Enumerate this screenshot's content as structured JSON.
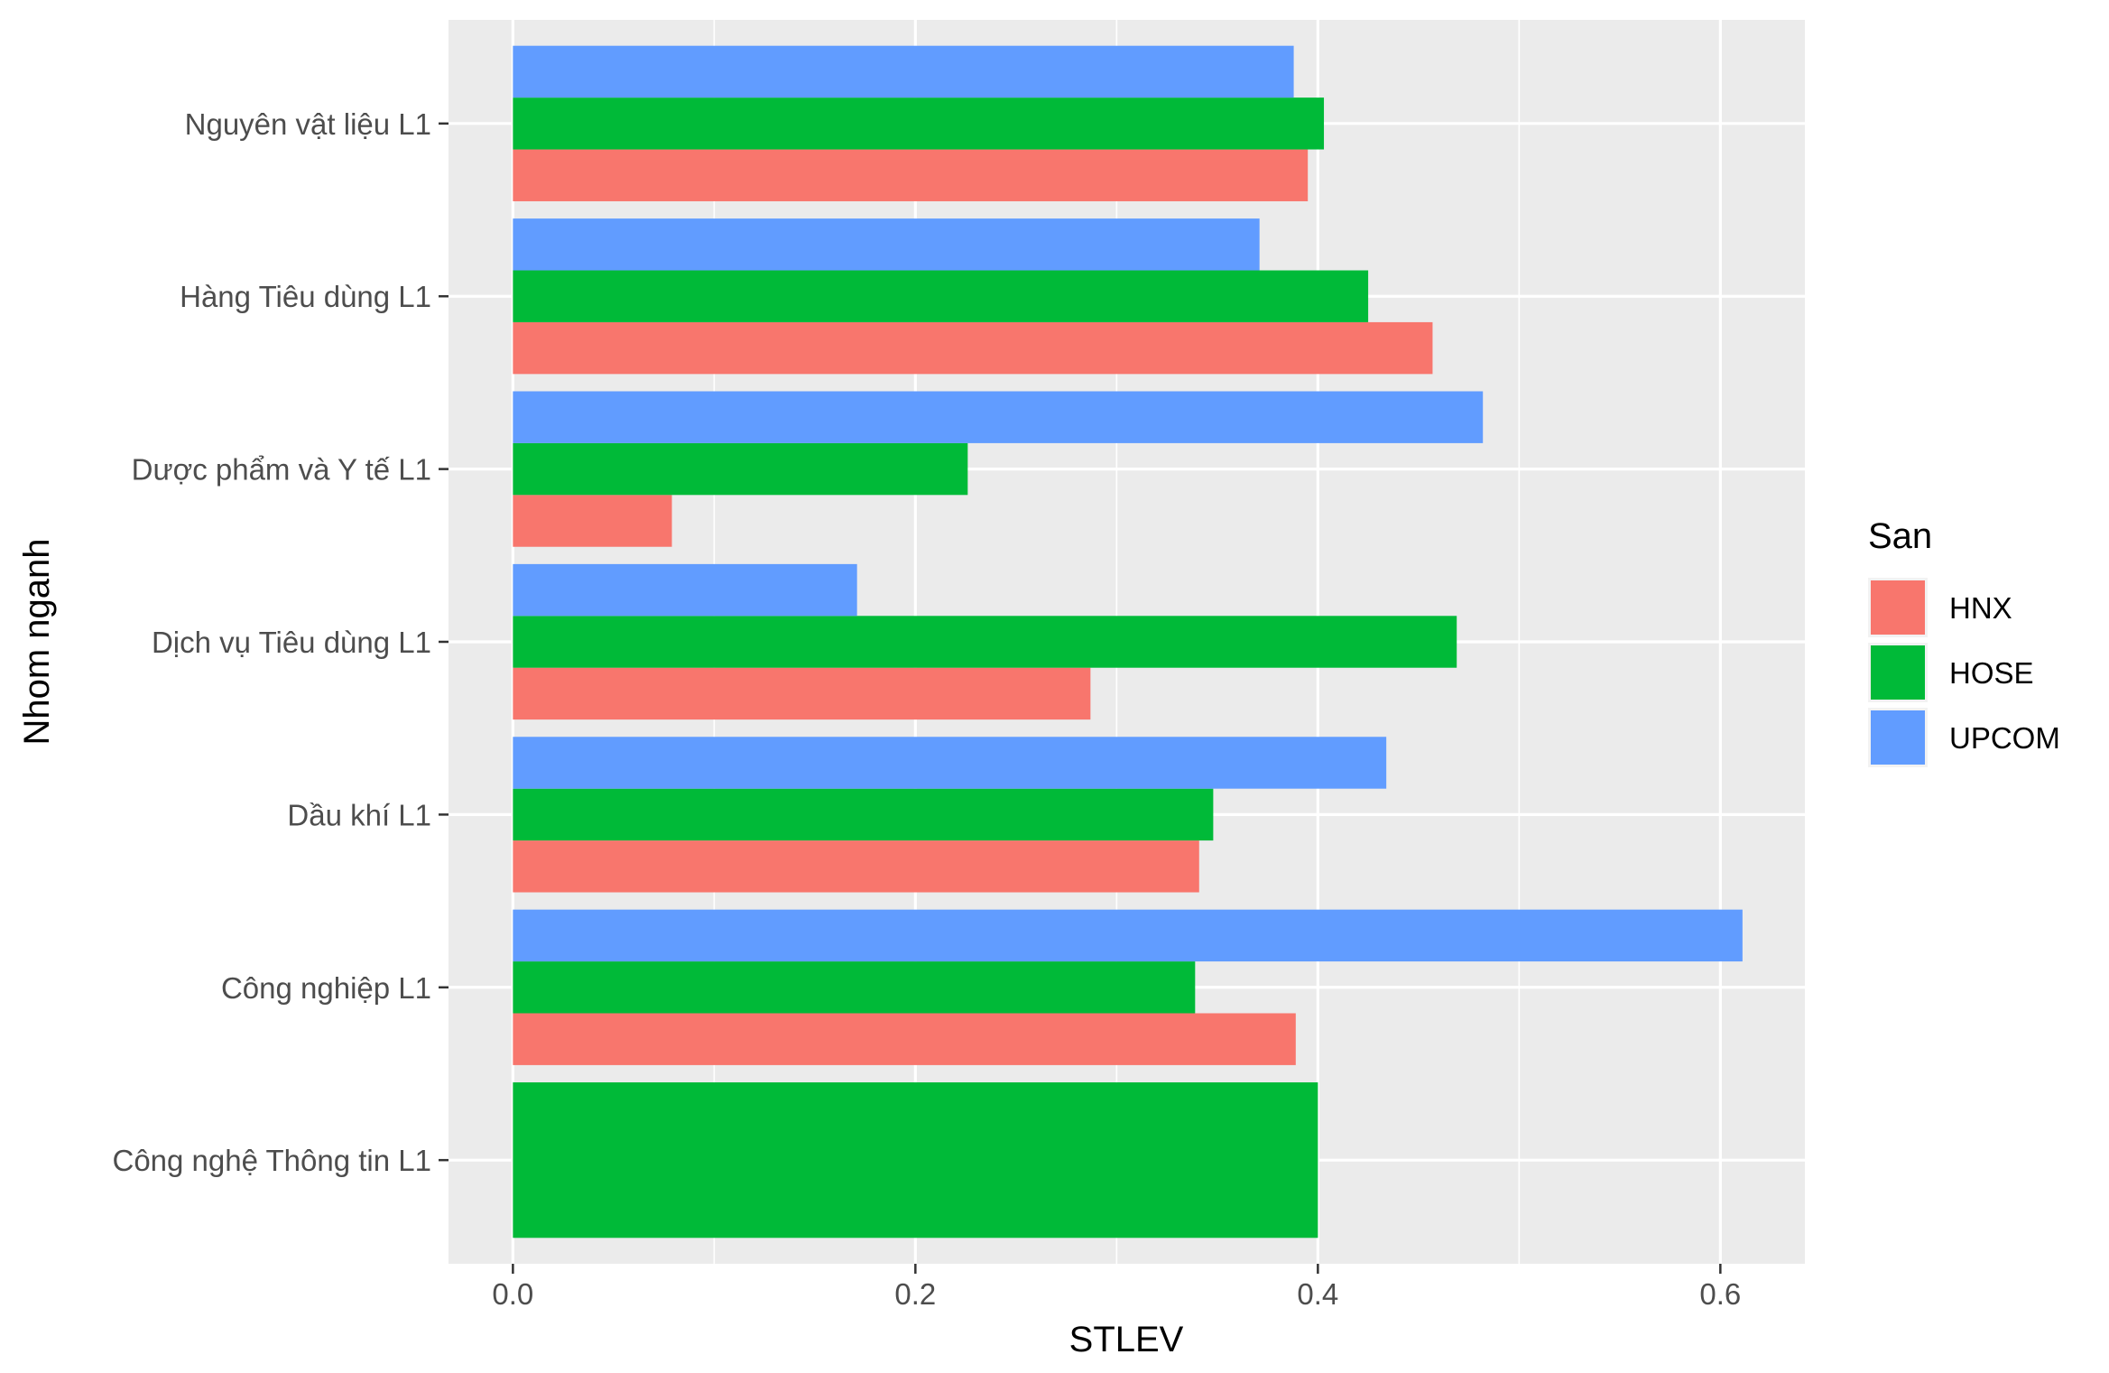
{
  "chart_data": {
    "type": "bar",
    "orientation": "horizontal",
    "position": "dodge",
    "categories": [
      "Công nghệ Thông tin L1",
      "Công nghiệp L1",
      "Dầu khí L1",
      "Dịch vụ Tiêu dùng L1",
      "Dược phẩm và Y tế L1",
      "Hàng Tiêu dùng L1",
      "Nguyên vật liệu L1"
    ],
    "series": [
      {
        "name": "HNX",
        "color": "#F8766D",
        "values": [
          null,
          0.389,
          0.341,
          0.287,
          0.079,
          0.457,
          0.395
        ]
      },
      {
        "name": "HOSE",
        "color": "#00BA38",
        "values": [
          0.4,
          0.339,
          0.348,
          0.469,
          0.226,
          0.425,
          0.403
        ]
      },
      {
        "name": "UPCOM",
        "color": "#619CFF",
        "values": [
          null,
          0.611,
          0.434,
          0.171,
          0.482,
          0.371,
          0.388
        ]
      }
    ],
    "xlabel": "STLEV",
    "ylabel": "Nhom nganh",
    "xlim": [
      -0.032,
      0.642
    ],
    "x_ticks": [
      0.0,
      0.2,
      0.4,
      0.6
    ],
    "x_tick_labels": [
      "0.0",
      "0.2",
      "0.4",
      "0.6"
    ],
    "grid": true,
    "legend": {
      "title": "San",
      "placement": "right"
    }
  },
  "panel_background": "#EBEBEB",
  "grid_color": "#FFFFFF",
  "tick_color": "#333333"
}
